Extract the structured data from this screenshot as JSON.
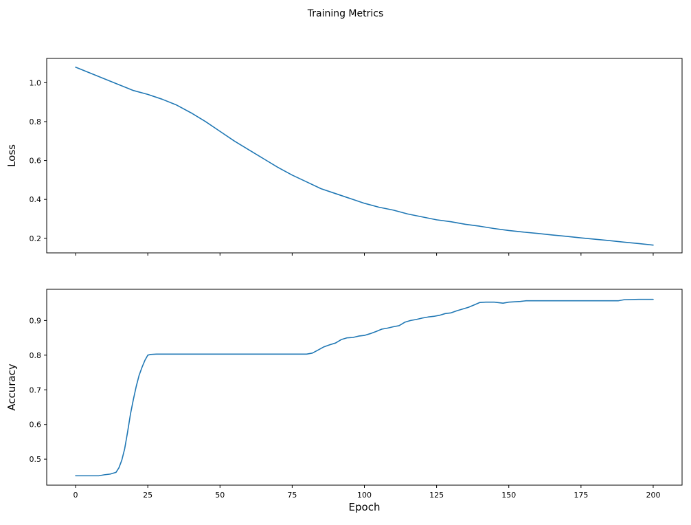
{
  "figure": {
    "title": "Training Metrics",
    "background": "#ffffff",
    "line_color": "#1f77b4"
  },
  "chart_data": [
    {
      "type": "line",
      "name": "loss",
      "title": "",
      "xlabel": "",
      "ylabel": "Loss",
      "legend": null,
      "grid": false,
      "xlim": [
        -10,
        210
      ],
      "ylim": [
        0.125,
        1.125
      ],
      "xticks": [
        0,
        25,
        50,
        75,
        100,
        125,
        150,
        175,
        200
      ],
      "yticks": [
        0.2,
        0.4,
        0.6,
        0.8,
        1.0
      ],
      "show_xticklabels": false,
      "x": [
        0,
        5,
        10,
        15,
        20,
        25,
        30,
        35,
        40,
        45,
        50,
        55,
        60,
        65,
        70,
        75,
        80,
        85,
        90,
        95,
        100,
        105,
        110,
        115,
        120,
        125,
        130,
        135,
        140,
        145,
        150,
        155,
        160,
        165,
        170,
        175,
        180,
        185,
        190,
        195,
        200
      ],
      "y": [
        1.08,
        1.05,
        1.02,
        0.99,
        0.96,
        0.94,
        0.915,
        0.885,
        0.845,
        0.8,
        0.75,
        0.7,
        0.655,
        0.61,
        0.565,
        0.525,
        0.49,
        0.455,
        0.43,
        0.405,
        0.38,
        0.36,
        0.345,
        0.325,
        0.31,
        0.295,
        0.285,
        0.272,
        0.262,
        0.25,
        0.24,
        0.232,
        0.225,
        0.217,
        0.21,
        0.202,
        0.195,
        0.188,
        0.18,
        0.173,
        0.165
      ]
    },
    {
      "type": "line",
      "name": "accuracy",
      "title": "",
      "xlabel": "Epoch",
      "ylabel": "Accuracy",
      "legend": null,
      "grid": false,
      "xlim": [
        -10,
        210
      ],
      "ylim": [
        0.425,
        0.99
      ],
      "xticks": [
        0,
        25,
        50,
        75,
        100,
        125,
        150,
        175,
        200
      ],
      "yticks": [
        0.5,
        0.6,
        0.7,
        0.8,
        0.9
      ],
      "show_xticklabels": true,
      "x": [
        0,
        4,
        8,
        10,
        12,
        14,
        15,
        16,
        17,
        18,
        19,
        20,
        21,
        22,
        23,
        24,
        25,
        26,
        28,
        35,
        45,
        55,
        65,
        75,
        80,
        82,
        84,
        86,
        88,
        90,
        92,
        94,
        96,
        98,
        100,
        102,
        104,
        106,
        108,
        110,
        112,
        114,
        116,
        118,
        120,
        122,
        124,
        126,
        128,
        130,
        132,
        134,
        136,
        138,
        140,
        142,
        145,
        148,
        150,
        152,
        154,
        156,
        160,
        165,
        170,
        175,
        180,
        185,
        188,
        190,
        195,
        200
      ],
      "y": [
        0.452,
        0.452,
        0.452,
        0.455,
        0.457,
        0.462,
        0.475,
        0.497,
        0.53,
        0.578,
        0.63,
        0.672,
        0.71,
        0.742,
        0.765,
        0.785,
        0.8,
        0.802,
        0.803,
        0.803,
        0.803,
        0.803,
        0.803,
        0.803,
        0.803,
        0.806,
        0.815,
        0.824,
        0.83,
        0.835,
        0.845,
        0.85,
        0.851,
        0.855,
        0.857,
        0.862,
        0.868,
        0.875,
        0.878,
        0.882,
        0.885,
        0.895,
        0.9,
        0.903,
        0.907,
        0.91,
        0.912,
        0.915,
        0.92,
        0.922,
        0.928,
        0.933,
        0.938,
        0.945,
        0.952,
        0.953,
        0.953,
        0.95,
        0.953,
        0.954,
        0.955,
        0.957,
        0.957,
        0.957,
        0.957,
        0.957,
        0.957,
        0.957,
        0.957,
        0.96,
        0.961,
        0.961
      ]
    }
  ]
}
